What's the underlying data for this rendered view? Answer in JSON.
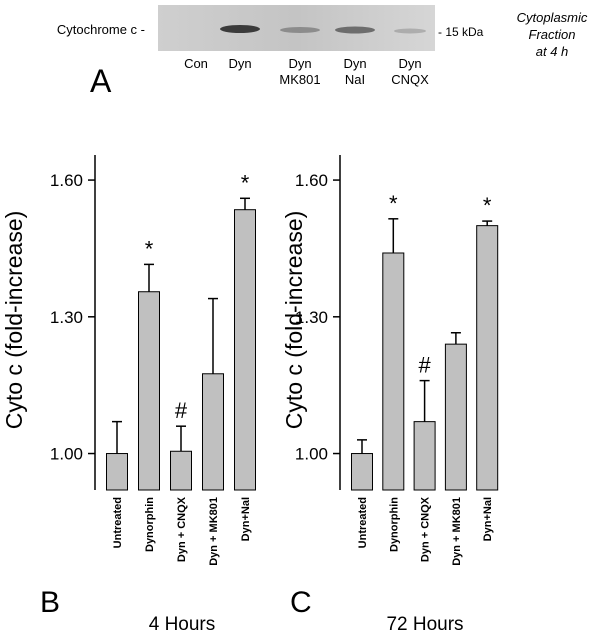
{
  "panel_a": {
    "letter": "A",
    "band_label": "Cytochrome c -",
    "marker_label": "- 15 kDa",
    "lanes": [
      [
        "Con"
      ],
      [
        "Dyn"
      ],
      [
        "Dyn",
        "MK801"
      ],
      [
        "Dyn",
        "NaI"
      ],
      [
        "Dyn",
        "CNQX"
      ]
    ],
    "note": [
      "Cytoplasmic",
      "Fraction",
      "at 4 h"
    ]
  },
  "chart_data": [
    {
      "type": "bar",
      "letter": "B",
      "caption": "4 Hours",
      "y_label": "Cyto c (fold-increase)",
      "categories": [
        "Untreated",
        "Dynorphin",
        "Dyn + CNQX",
        "Dyn + MK801",
        "Dyn+NaI"
      ],
      "values": [
        1.0,
        1.355,
        1.005,
        1.175,
        1.535
      ],
      "errors": [
        0.07,
        0.06,
        0.055,
        0.165,
        0.025
      ],
      "markers": [
        null,
        "*",
        "#",
        null,
        "*"
      ],
      "color": "#c0c0c0",
      "ylim": [
        0.92,
        1.655
      ],
      "yticks": [
        {
          "value": 1.0,
          "label": "1.00"
        },
        {
          "value": 1.3,
          "label": "1.30"
        },
        {
          "value": 1.6,
          "label": "1.60"
        }
      ]
    },
    {
      "type": "bar",
      "letter": "C",
      "caption": "72 Hours",
      "y_label": "Cyto c (fold-increase)",
      "categories": [
        "Untreated",
        "Dynorphin",
        "Dyn + CNQX",
        "Dyn + MK801",
        "Dyn+NaI"
      ],
      "values": [
        1.0,
        1.44,
        1.07,
        1.24,
        1.5
      ],
      "errors": [
        0.03,
        0.075,
        0.09,
        0.025,
        0.01
      ],
      "markers": [
        null,
        "*",
        "#",
        null,
        "*"
      ],
      "color": "#c0c0c0",
      "ylim": [
        0.92,
        1.655
      ],
      "yticks": [
        {
          "value": 1.0,
          "label": "1.00"
        },
        {
          "value": 1.3,
          "label": "1.30"
        },
        {
          "value": 1.6,
          "label": "1.60"
        }
      ]
    }
  ]
}
